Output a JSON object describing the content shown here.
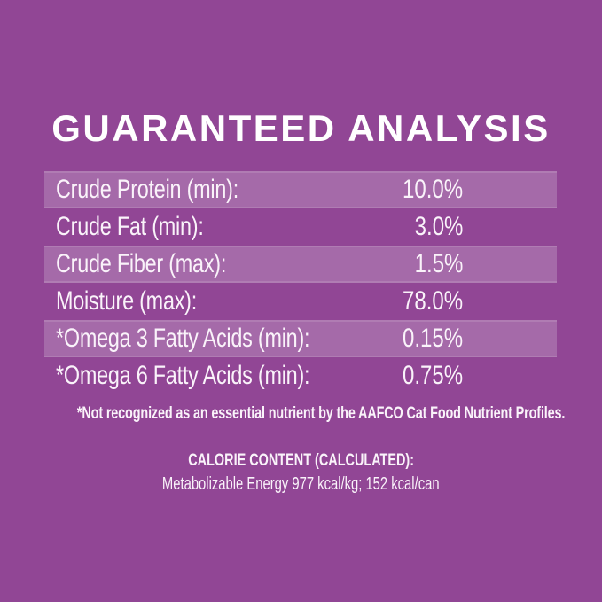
{
  "colors": {
    "background": "#914695",
    "row_stripe": "#a56aa9",
    "text": "#faf3fa"
  },
  "title": "GUARANTEED ANALYSIS",
  "analysis": {
    "rows": [
      {
        "label": "Crude Protein (min):",
        "value": "10.0%"
      },
      {
        "label": "Crude Fat (min):",
        "value": "3.0%"
      },
      {
        "label": "Crude Fiber (max):",
        "value": "1.5%"
      },
      {
        "label": "Moisture (max):",
        "value": "78.0%"
      },
      {
        "label": "*Omega 3 Fatty Acids (min):",
        "value": "0.15%"
      },
      {
        "label": "*Omega 6 Fatty Acids (min):",
        "value": "0.75%"
      }
    ],
    "footnote": "*Not recognized as an essential nutrient by the AAFCO Cat Food Nutrient Profiles."
  },
  "calorie_content": {
    "heading": "CALORIE CONTENT (CALCULATED):",
    "detail": "Metabolizable Energy 977 kcal/kg; 152 kcal/can"
  }
}
